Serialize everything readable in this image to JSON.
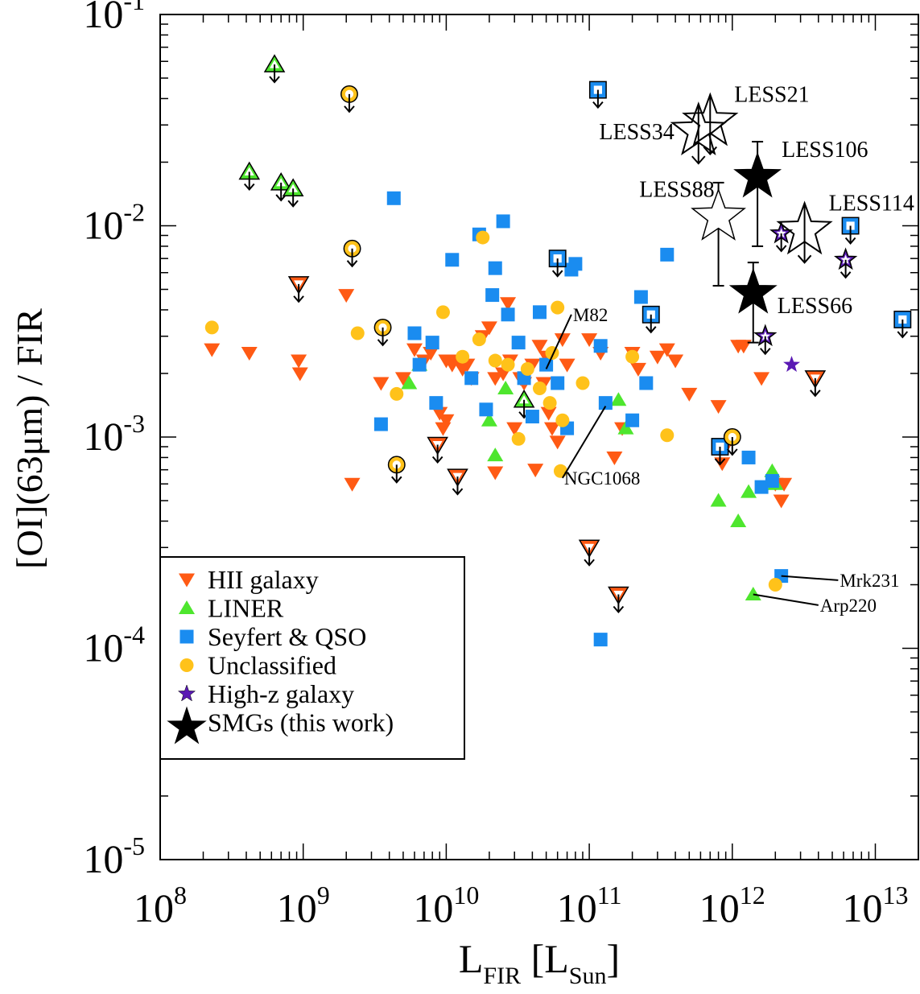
{
  "chart_data": {
    "type": "scatter",
    "x_scale": "log",
    "y_scale": "log",
    "xlim": [
      100000000.0,
      20000000000000.0
    ],
    "ylim": [
      1e-05,
      0.1
    ],
    "xlabel": {
      "main": "L",
      "sub1": "FIR",
      "bracket_open": " [L",
      "sub2": "Sun",
      "bracket_close": "]"
    },
    "ylabel": "[OI](63μm) / FIR",
    "x_ticks": [
      {
        "value": 100000000.0,
        "base": "10",
        "exp": "8"
      },
      {
        "value": 1000000000.0,
        "base": "10",
        "exp": "9"
      },
      {
        "value": 10000000000.0,
        "base": "10",
        "exp": "10"
      },
      {
        "value": 100000000000.0,
        "base": "10",
        "exp": "11"
      },
      {
        "value": 1000000000000.0,
        "base": "10",
        "exp": "12"
      },
      {
        "value": 10000000000000.0,
        "base": "10",
        "exp": "13"
      }
    ],
    "y_ticks": [
      {
        "value": 1e-05,
        "base": "10",
        "exp": "-5"
      },
      {
        "value": 0.0001,
        "base": "10",
        "exp": "-4"
      },
      {
        "value": 0.001,
        "base": "10",
        "exp": "-3"
      },
      {
        "value": 0.01,
        "base": "10",
        "exp": "-2"
      },
      {
        "value": 0.1,
        "base": "10",
        "exp": "-1"
      }
    ],
    "legend": {
      "placement": "lower-left",
      "entries": [
        {
          "key": "hii",
          "label": "HII galaxy"
        },
        {
          "key": "liner",
          "label": "LINER"
        },
        {
          "key": "seyfert",
          "label": "Seyfert & QSO"
        },
        {
          "key": "uncl",
          "label": "Unclassified"
        },
        {
          "key": "highz",
          "label": "High-z galaxy"
        },
        {
          "key": "smg",
          "label": "SMGs (this work)"
        }
      ]
    },
    "colors": {
      "hii": "#ff5a14",
      "liner": "#4ee62e",
      "seyfert": "#1a8cf0",
      "uncl": "#ffc21a",
      "highz": "#5a1ab4",
      "smg": "#000000"
    },
    "series": [
      {
        "key": "hii",
        "name": "HII galaxy",
        "detections": [
          [
            230000000.0,
            0.0026
          ],
          [
            420000000.0,
            0.0025
          ],
          [
            930000000.0,
            0.0023
          ],
          [
            950000000.0,
            0.002
          ],
          [
            2000000000.0,
            0.0047
          ],
          [
            3500000000.0,
            0.0018
          ],
          [
            5000000000.0,
            0.0019
          ],
          [
            6000000000.0,
            0.0026
          ],
          [
            7000000000.0,
            0.0023
          ],
          [
            7800000000.0,
            0.0025
          ],
          [
            9000000000.0,
            0.0013
          ],
          [
            9500000000.0,
            0.0011
          ],
          [
            10000000000.0,
            0.0023
          ],
          [
            11000000000.0,
            0.0022
          ],
          [
            12000000000.0,
            0.0023
          ],
          [
            13000000000.0,
            0.0021
          ],
          [
            14000000000.0,
            0.0022
          ],
          [
            15000000000.0,
            0.0019
          ],
          [
            18000000000.0,
            0.003
          ],
          [
            20000000000.0,
            0.0033
          ],
          [
            22000000000.0,
            0.0019
          ],
          [
            25000000000.0,
            0.002
          ],
          [
            27000000000.0,
            0.0043
          ],
          [
            28000000000.0,
            0.0023
          ],
          [
            30000000000.0,
            0.0011
          ],
          [
            33000000000.0,
            0.0019
          ],
          [
            35000000000.0,
            0.0018
          ],
          [
            40000000000.0,
            0.0022
          ],
          [
            42000000000.0,
            0.0007
          ],
          [
            45000000000.0,
            0.0027
          ],
          [
            48000000000.0,
            0.0018
          ],
          [
            50000000000.0,
            0.0024
          ],
          [
            55000000000.0,
            0.0011
          ],
          [
            60000000000.0,
            0.00095
          ],
          [
            65000000000.0,
            0.0029
          ],
          [
            70000000000.0,
            0.0022
          ],
          [
            100000000000.0,
            0.0029
          ],
          [
            120000000000.0,
            0.0025
          ],
          [
            150000000000.0,
            0.0008
          ],
          [
            200000000000.0,
            0.0025
          ],
          [
            220000000000.0,
            0.0021
          ],
          [
            300000000000.0,
            0.0024
          ],
          [
            350000000000.0,
            0.0026
          ],
          [
            400000000000.0,
            0.0023
          ],
          [
            500000000000.0,
            0.0016
          ],
          [
            800000000000.0,
            0.0014
          ],
          [
            850000000000.0,
            0.00075
          ],
          [
            900000000000.0,
            0.0009
          ],
          [
            1100000000000.0,
            0.0027
          ],
          [
            1200000000000.0,
            0.0027
          ],
          [
            1600000000000.0,
            0.0019
          ],
          [
            2000000000000.0,
            0.0006
          ],
          [
            2200000000000.0,
            0.0005
          ],
          [
            2300000000000.0,
            0.0006
          ],
          [
            2200000000.0,
            0.0006
          ],
          [
            10000000000.0,
            0.0012
          ],
          [
            22000000000.0,
            0.00068
          ],
          [
            170000000000.0,
            0.0011
          ],
          [
            52000000000.0,
            0.0013
          ]
        ],
        "upper_limits": [
          [
            930000000.0,
            0.0053
          ],
          [
            8700000000.0,
            0.00092
          ],
          [
            12000000000.0,
            0.00065
          ],
          [
            100000000000.0,
            0.0003
          ],
          [
            160000000000.0,
            0.00018
          ],
          [
            3800000000000.0,
            0.0019
          ]
        ]
      },
      {
        "key": "liner",
        "name": "LINER",
        "detections": [
          [
            5500000000.0,
            0.0018
          ],
          [
            6500000000.0,
            0.0022
          ],
          [
            20000000000.0,
            0.0012
          ],
          [
            22000000000.0,
            0.00082
          ],
          [
            26000000000.0,
            0.0017
          ],
          [
            160000000000.0,
            0.0015
          ],
          [
            180000000000.0,
            0.0011
          ],
          [
            800000000000.0,
            0.0005
          ],
          [
            1100000000000.0,
            0.0004
          ],
          [
            1300000000000.0,
            0.00055
          ],
          [
            1900000000000.0,
            0.00069
          ],
          [
            2000000000000.0,
            0.0006
          ],
          [
            1400000000000.0,
            0.00018
          ]
        ],
        "upper_limits": [
          [
            630000000.0,
            0.058
          ],
          [
            420000000.0,
            0.018
          ],
          [
            700000000.0,
            0.016
          ],
          [
            850000000.0,
            0.015
          ],
          [
            35000000000.0,
            0.0015
          ]
        ]
      },
      {
        "key": "seyfert",
        "name": "Seyfert & QSO",
        "detections": [
          [
            3500000000.0,
            0.00115
          ],
          [
            4300000000.0,
            0.0135
          ],
          [
            6000000000.0,
            0.0031
          ],
          [
            6500000000.0,
            0.0022
          ],
          [
            8000000000.0,
            0.0028
          ],
          [
            8500000000.0,
            0.00145
          ],
          [
            11000000000.0,
            0.0069
          ],
          [
            15000000000.0,
            0.0019
          ],
          [
            17000000000.0,
            0.0091
          ],
          [
            19000000000.0,
            0.00135
          ],
          [
            21000000000.0,
            0.0047
          ],
          [
            22000000000.0,
            0.0063
          ],
          [
            25000000000.0,
            0.0105
          ],
          [
            27000000000.0,
            0.0038
          ],
          [
            32000000000.0,
            0.0028
          ],
          [
            35000000000.0,
            0.0019
          ],
          [
            40000000000.0,
            0.00125
          ],
          [
            45000000000.0,
            0.0039
          ],
          [
            50000000000.0,
            0.0022
          ],
          [
            60000000000.0,
            0.0018
          ],
          [
            70000000000.0,
            0.0011
          ],
          [
            75000000000.0,
            0.0062
          ],
          [
            80000000000.0,
            0.0066
          ],
          [
            120000000000.0,
            0.0027
          ],
          [
            130000000000.0,
            0.00145
          ],
          [
            200000000000.0,
            0.0012
          ],
          [
            230000000000.0,
            0.0046
          ],
          [
            250000000000.0,
            0.0018
          ],
          [
            350000000000.0,
            0.0073
          ],
          [
            120000000000.0,
            0.00011
          ],
          [
            1300000000000.0,
            0.0008
          ],
          [
            1600000000000.0,
            0.00058
          ],
          [
            1900000000000.0,
            0.00062
          ],
          [
            2200000000000.0,
            0.00022
          ]
        ],
        "upper_limits": [
          [
            115000000000.0,
            0.044
          ],
          [
            60000000000.0,
            0.007
          ],
          [
            270000000000.0,
            0.0038
          ],
          [
            820000000000.0,
            0.0009
          ],
          [
            6700000000000.0,
            0.01
          ],
          [
            15500000000000.0,
            0.0036
          ]
        ]
      },
      {
        "key": "uncl",
        "name": "Unclassified",
        "detections": [
          [
            230000000.0,
            0.0033
          ],
          [
            2400000000.0,
            0.0031
          ],
          [
            4500000000.0,
            0.0016
          ],
          [
            9500000000.0,
            0.0039
          ],
          [
            13000000000.0,
            0.0024
          ],
          [
            17000000000.0,
            0.0029
          ],
          [
            18000000000.0,
            0.0088
          ],
          [
            22000000000.0,
            0.0023
          ],
          [
            27000000000.0,
            0.0022
          ],
          [
            32000000000.0,
            0.00098
          ],
          [
            37000000000.0,
            0.0021
          ],
          [
            45000000000.0,
            0.0017
          ],
          [
            53000000000.0,
            0.00145
          ],
          [
            55000000000.0,
            0.0025
          ],
          [
            60000000000.0,
            0.0041
          ],
          [
            63000000000.0,
            0.00069
          ],
          [
            65000000000.0,
            0.0012
          ],
          [
            90000000000.0,
            0.0018
          ],
          [
            200000000000.0,
            0.0024
          ],
          [
            350000000000.0,
            0.00102
          ],
          [
            2000000000000.0,
            0.0002
          ]
        ],
        "upper_limits": [
          [
            2100000000.0,
            0.042
          ],
          [
            2200000000.0,
            0.0078
          ],
          [
            3600000000.0,
            0.0033
          ],
          [
            4500000000.0,
            0.00074
          ],
          [
            1000000000000.0,
            0.001
          ]
        ]
      },
      {
        "key": "highz",
        "name": "High-z galaxy",
        "detections": [
          [
            2600000000000.0,
            0.0022
          ]
        ],
        "upper_limits": [
          [
            2200000000000.0,
            0.0092
          ],
          [
            6200000000000.0,
            0.0069
          ],
          [
            1700000000000.0,
            0.003
          ]
        ]
      }
    ],
    "smgs": [
      {
        "label": "LESS106",
        "x": 1500000000000.0,
        "y": 0.017,
        "yerr": [
          0.008,
          0.025
        ],
        "limit": false,
        "label_pos": "right-up"
      },
      {
        "label": "LESS66",
        "x": 1400000000000.0,
        "y": 0.0048,
        "yerr": [
          0.0028,
          0.0067
        ],
        "limit": false,
        "label_pos": "right-down"
      },
      {
        "label": "LESS88",
        "x": 800000000000.0,
        "y": 0.011,
        "yerr": [
          0.0052,
          0.016
        ],
        "limit": false,
        "open": true,
        "label_pos": "left-up"
      },
      {
        "label": "LESS34",
        "x": 580000000000.0,
        "y": 0.028,
        "limit": true,
        "label_pos": "left"
      },
      {
        "label": "LESS21",
        "x": 700000000000.0,
        "y": 0.031,
        "limit": true,
        "label_pos": "right-up"
      },
      {
        "label": "LESS114",
        "x": 3200000000000.0,
        "y": 0.0095,
        "limit": true,
        "label_pos": "right-up"
      }
    ],
    "annotations": [
      {
        "text": "M82",
        "x": 50000000000.0,
        "y": 0.0021,
        "tx": 75000000000.0,
        "ty": 0.0038
      },
      {
        "text": "NGC1068",
        "x": 130000000000.0,
        "y": 0.0014,
        "tx": 65000000000.0,
        "ty": 0.00064
      },
      {
        "text": "Mrk231",
        "x": 2200000000000.0,
        "y": 0.00022,
        "tx": 5500000000000.0,
        "ty": 0.00021
      },
      {
        "text": "Arp220",
        "x": 1400000000000.0,
        "y": 0.00018,
        "tx": 4000000000000.0,
        "ty": 0.00016
      }
    ]
  }
}
